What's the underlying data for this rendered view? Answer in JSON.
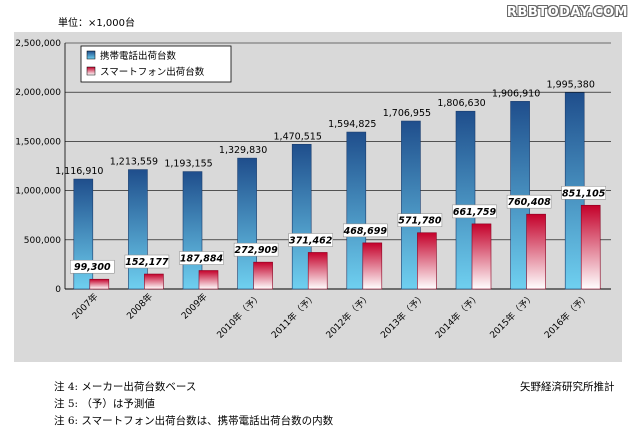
{
  "header": {
    "unit_label": "単位：×1,000台",
    "watermark": "RBBTODAY.COM"
  },
  "colors": {
    "phone_top": "#1f4e8c",
    "phone_bottom": "#6fd0f0",
    "smart_top": "#c4002a",
    "smart_bottom": "#ffffff",
    "panel_bg": "#d9d9d9"
  },
  "chart_data": {
    "type": "bar",
    "categories": [
      "2007年",
      "2008年",
      "2009年",
      "2010年（予）",
      "2011年（予）",
      "2012年（予）",
      "2013年（予）",
      "2014年（予）",
      "2015年（予）",
      "2016年（予）"
    ],
    "series": [
      {
        "name": "携帯電話出荷台数",
        "values": [
          1116910,
          1213559,
          1193155,
          1329830,
          1470515,
          1594825,
          1706955,
          1806630,
          1906910,
          1995380
        ],
        "labels": [
          "1,116,910",
          "1,213,559",
          "1,193,155",
          "1,329,830",
          "1,470,515",
          "1,594,825",
          "1,706,955",
          "1,806,630",
          "1,906,910",
          "1,995,380"
        ]
      },
      {
        "name": "スマートフォン出荷台数",
        "values": [
          99300,
          152177,
          187884,
          272909,
          371462,
          468699,
          571780,
          661759,
          760408,
          851105
        ],
        "labels": [
          "99,300",
          "152,177",
          "187,884",
          "272,909",
          "371,462",
          "468,699",
          "571,780",
          "661,759",
          "760,408",
          "851,105"
        ]
      }
    ],
    "ylim": [
      0,
      2500000
    ],
    "yticks": [
      0,
      500000,
      1000000,
      1500000,
      2000000,
      2500000
    ],
    "ytick_labels": [
      "0",
      "500,000",
      "1,000,000",
      "1,500,000",
      "2,000,000",
      "2,500,000"
    ],
    "grid": true,
    "legend": "top-left"
  },
  "footer": {
    "note1": "注 4:  メーカー出荷台数ベース",
    "note2": "注 5:  （予）は予測値",
    "note3": "注 6: スマートフォン出荷台数は、携帯電話出荷台数の内数",
    "source": "矢野経済研究所推計"
  }
}
